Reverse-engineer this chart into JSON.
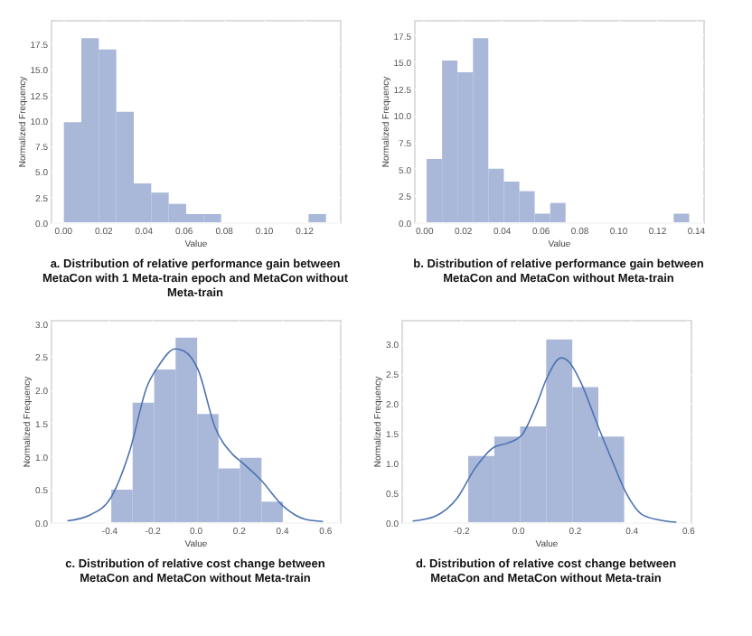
{
  "chart_data": [
    {
      "type": "histogram",
      "title": "a. Distribution of relative performance gain between MetaCon with 1 Meta-train epoch and MetaCon without Meta-train",
      "xlabel": "Value",
      "ylabel": "Normalized Frequency",
      "grid": true,
      "xlim": [
        -0.006,
        0.138
      ],
      "ylim": [
        0,
        19.8
      ],
      "xticks": [
        {
          "value": 0,
          "label": "0.00"
        },
        {
          "value": 0.02,
          "label": "0.02"
        },
        {
          "value": 0.04,
          "label": "0.04"
        },
        {
          "value": 0.06,
          "label": "0.06"
        },
        {
          "value": 0.08,
          "label": "0.08"
        },
        {
          "value": 0.1,
          "label": "0.10"
        },
        {
          "value": 0.12,
          "label": "0.12"
        }
      ],
      "yticks": [
        {
          "value": 0,
          "label": "0.0"
        },
        2.5,
        {
          "value": 5,
          "label": "5.0"
        },
        7.5,
        {
          "value": 10,
          "label": "10.0"
        },
        12.5,
        {
          "value": 15,
          "label": "15.0"
        },
        17.5
      ],
      "color": "#a9b8d8",
      "bins": [
        0.0006,
        0.0093,
        0.018,
        0.0267,
        0.0354,
        0.0441,
        0.0528,
        0.0615,
        0.0702,
        0.0789,
        0.0876,
        0.0963,
        0.105,
        0.1137,
        0.1224,
        0.1311
      ],
      "values": [
        9.8,
        18.0,
        16.9,
        10.8,
        3.8,
        2.9,
        1.8,
        0.8,
        0.8,
        0,
        0,
        0,
        0,
        0,
        0.8
      ]
    },
    {
      "type": "histogram",
      "title": "b. Distribution of relative performance gain between MetaCon and MetaCon without Meta-train",
      "xlabel": "Value",
      "ylabel": "Normalized Frequency",
      "grid": true,
      "xlim": [
        -0.005,
        0.144
      ],
      "ylim": [
        0,
        18.9
      ],
      "xticks": [
        {
          "value": 0,
          "label": "0.00"
        },
        {
          "value": 0.02,
          "label": "0.02"
        },
        {
          "value": 0.04,
          "label": "0.04"
        },
        {
          "value": 0.06,
          "label": "0.06"
        },
        {
          "value": 0.08,
          "label": "0.08"
        },
        {
          "value": 0.1,
          "label": "0.10"
        },
        {
          "value": 0.12,
          "label": "0.12"
        },
        {
          "value": 0.14,
          "label": "0.14"
        }
      ],
      "yticks": [
        {
          "value": 0,
          "label": "0.0"
        },
        2.5,
        {
          "value": 5,
          "label": "5.0"
        },
        7.5,
        {
          "value": 10,
          "label": "10.0"
        },
        12.5,
        {
          "value": 15,
          "label": "15.0"
        },
        17.5
      ],
      "color": "#a9b8d8",
      "bins": [
        0.0015,
        0.0095,
        0.0174,
        0.0254,
        0.0333,
        0.0413,
        0.0493,
        0.0572,
        0.0652,
        0.0731,
        0.0811,
        0.0891,
        0.097,
        0.105,
        0.1129,
        0.1209,
        0.1288,
        0.1368
      ],
      "values": [
        5.9,
        15.1,
        14.0,
        17.2,
        5.0,
        3.8,
        2.9,
        0.8,
        1.8,
        0,
        0,
        0,
        0,
        0,
        0,
        0,
        0.8
      ]
    },
    {
      "type": "histogram",
      "title": "c. Distribution of relative cost change between MetaCon and MetaCon without Meta-train",
      "xlabel": "Value",
      "ylabel": "Normalized Frequency",
      "grid": true,
      "xlim": [
        -0.67,
        0.67
      ],
      "ylim": [
        0,
        3.05
      ],
      "xticks": [
        -0.4,
        -0.2,
        {
          "value": 0,
          "label": "0.0"
        },
        0.2,
        0.4,
        0.6
      ],
      "yticks": [
        {
          "value": 0,
          "label": "0.0"
        },
        0.5,
        {
          "value": 1,
          "label": "1.0"
        },
        1.5,
        {
          "value": 2,
          "label": "2.0"
        },
        2.5,
        {
          "value": 3,
          "label": "3.0"
        }
      ],
      "series": [
        {
          "type": "histogram",
          "color": "#a9b8d8",
          "bins": [
            -0.389,
            -0.29,
            -0.19,
            -0.091,
            0.009,
            0.108,
            0.207,
            0.307,
            0.406
          ],
          "values": [
            0.49,
            1.8,
            2.3,
            2.78,
            1.63,
            0.81,
            0.97,
            0.31
          ]
        },
        {
          "type": "line",
          "color": "#4c72b0",
          "x": [
            -0.592,
            -0.487,
            -0.389,
            -0.303,
            -0.224,
            -0.171,
            -0.092,
            -0.053,
            0.013,
            0.092,
            0.171,
            0.224,
            0.303,
            0.408,
            0.513,
            0.592
          ],
          "values": [
            0.02,
            0.11,
            0.38,
            1.08,
            2.04,
            2.35,
            2.61,
            2.58,
            2.3,
            1.43,
            1.03,
            0.88,
            0.64,
            0.24,
            0.04,
            0.01
          ]
        }
      ]
    },
    {
      "type": "histogram",
      "title": "d. Distribution of relative cost change between MetaCon and MetaCon without Meta-train",
      "xlabel": "Value",
      "ylabel": "Normalized Frequency",
      "grid": true,
      "xlim": [
        -0.41,
        0.61
      ],
      "ylim": [
        0,
        3.4
      ],
      "xticks": [
        -0.2,
        {
          "value": 0,
          "label": "0.0"
        },
        0.2,
        0.4,
        0.6
      ],
      "yticks": [
        {
          "value": 0,
          "label": "0.0"
        },
        0.5,
        {
          "value": 1,
          "label": "1.0"
        },
        1.5,
        {
          "value": 2,
          "label": "2.0"
        },
        2.5,
        {
          "value": 3,
          "label": "3.0"
        }
      ],
      "series": [
        {
          "type": "histogram",
          "color": "#a9b8d8",
          "bins": [
            -0.174,
            -0.082,
            0.009,
            0.101,
            0.193,
            0.285,
            0.376
          ],
          "values": [
            1.11,
            1.44,
            1.61,
            3.07,
            2.27,
            1.44
          ]
        },
        {
          "type": "line",
          "color": "#4c72b0",
          "x": [
            -0.37,
            -0.291,
            -0.212,
            -0.152,
            -0.083,
            -0.034,
            0.016,
            0.065,
            0.105,
            0.154,
            0.184,
            0.224,
            0.283,
            0.333,
            0.382,
            0.442,
            0.521,
            0.56
          ],
          "values": [
            0.02,
            0.1,
            0.41,
            0.89,
            1.26,
            1.33,
            1.47,
            1.95,
            2.44,
            2.76,
            2.68,
            2.34,
            1.62,
            1.04,
            0.5,
            0.12,
            0.02,
            0.0
          ]
        }
      ]
    }
  ]
}
